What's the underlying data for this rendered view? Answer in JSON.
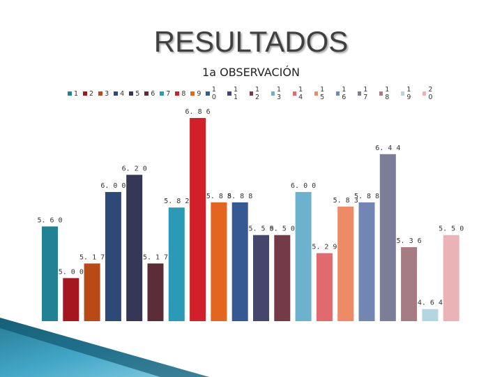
{
  "slide": {
    "title": "RESULTADOS"
  },
  "chart_data": {
    "type": "bar",
    "title": "1a OBSERVACIÓN",
    "xlabel": "",
    "ylabel": "",
    "legend_position": "top",
    "grid": false,
    "ylim": [
      4.5,
      7.0
    ],
    "value_label_format": "0.00",
    "value_label_spacing": "spaced",
    "series": [
      {
        "name": "1",
        "value": 5.6,
        "color": "#218295"
      },
      {
        "name": "2",
        "value": 5.0,
        "color": "#A5161E"
      },
      {
        "name": "3",
        "value": 5.17,
        "color": "#B94915"
      },
      {
        "name": "4",
        "value": 6.0,
        "color": "#2D4975"
      },
      {
        "name": "5",
        "value": 6.2,
        "color": "#363656"
      },
      {
        "name": "6",
        "value": 5.17,
        "color": "#5C2C38"
      },
      {
        "name": "7",
        "value": 5.82,
        "color": "#2B9AB6"
      },
      {
        "name": "8",
        "value": 6.86,
        "color": "#D2202A"
      },
      {
        "name": "9",
        "value": 5.88,
        "color": "#E4651E"
      },
      {
        "name": "10",
        "value": 5.88,
        "color": "#355A93"
      },
      {
        "name": "11",
        "value": 5.5,
        "color": "#45456E"
      },
      {
        "name": "12",
        "value": 5.5,
        "color": "#743A48"
      },
      {
        "name": "13",
        "value": 6.0,
        "color": "#6DB2CC"
      },
      {
        "name": "14",
        "value": 5.29,
        "color": "#E06A6E"
      },
      {
        "name": "15",
        "value": 5.83,
        "color": "#EF8A66"
      },
      {
        "name": "16",
        "value": 5.88,
        "color": "#7186B2"
      },
      {
        "name": "17",
        "value": 6.44,
        "color": "#7C7D97"
      },
      {
        "name": "18",
        "value": 5.36,
        "color": "#A67B84"
      },
      {
        "name": "19",
        "value": 4.64,
        "color": "#B4D6E3"
      },
      {
        "name": "20",
        "value": 5.5,
        "color": "#EAB4B6"
      }
    ]
  }
}
